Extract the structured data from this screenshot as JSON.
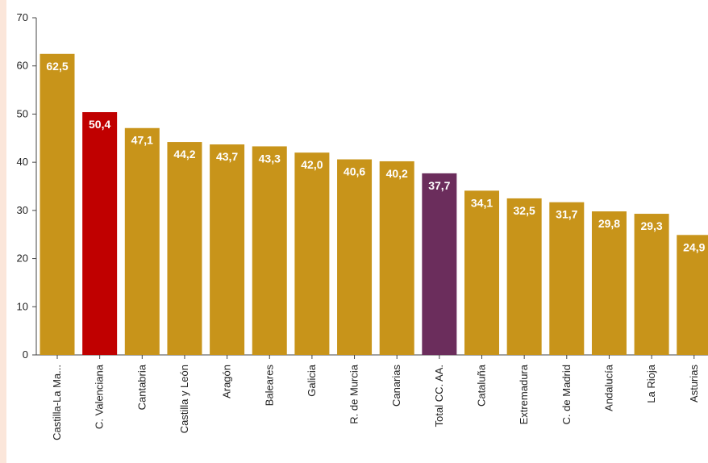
{
  "chart_data": {
    "type": "bar",
    "title": "",
    "xlabel": "",
    "ylabel": "",
    "ylim": [
      0,
      70
    ],
    "yticks": [
      0,
      10,
      20,
      30,
      40,
      50,
      60,
      70
    ],
    "categories": [
      "Castilla-La Ma...",
      "C. Valenciana",
      "Cantabria",
      "Castilla y León",
      "Aragón",
      "Baleares",
      "Galicia",
      "R. de Murcia",
      "Canarias",
      "Total CC. AA.",
      "Cataluña",
      "Extremadura",
      "C. de Madrid",
      "Andalucía",
      "La Rioja",
      "Asturias"
    ],
    "values": [
      62.5,
      50.4,
      47.1,
      44.2,
      43.7,
      43.3,
      42.0,
      40.6,
      40.2,
      37.7,
      34.1,
      32.5,
      31.7,
      29.8,
      29.3,
      24.9
    ],
    "value_labels": [
      "62,5",
      "50,4",
      "47,1",
      "44,2",
      "43,7",
      "43,3",
      "42,0",
      "40,6",
      "40,2",
      "37,7",
      "34,1",
      "32,5",
      "31,7",
      "29,8",
      "29,3",
      "24,9"
    ],
    "colors": {
      "default": "#c8941a",
      "highlight": "#c00000",
      "total": "#6b2d5c"
    },
    "bar_colors": [
      "default",
      "highlight",
      "default",
      "default",
      "default",
      "default",
      "default",
      "default",
      "default",
      "total",
      "default",
      "default",
      "default",
      "default",
      "default",
      "default"
    ],
    "grid": false,
    "legend": "none"
  }
}
